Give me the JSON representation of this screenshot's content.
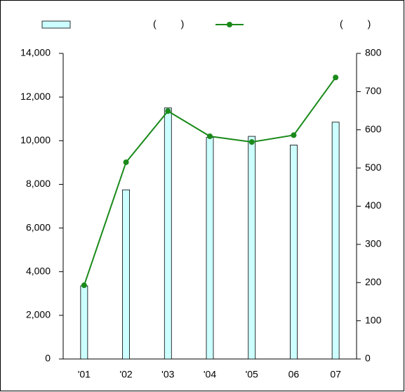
{
  "chart_data": {
    "type": "bar-line",
    "categories": [
      "'01",
      "'02",
      "'03",
      "'04",
      "'05",
      "06",
      "07"
    ],
    "series": [
      {
        "name": "(         )",
        "color": "#ccffff",
        "values": [
          3350,
          7750,
          11500,
          10150,
          10200,
          9800,
          10850
        ]
      },
      {
        "name": "(         )",
        "color": "#1a8a1a",
        "axis": "y2",
        "values": [
          193,
          515,
          649,
          583,
          568,
          586,
          737
        ]
      }
    ],
    "ylim": [
      0,
      14000
    ],
    "yticks": [
      0,
      {
        "value": 2000,
        "label": "2,000"
      },
      {
        "value": 4000,
        "label": "4,000"
      },
      {
        "value": 6000,
        "label": "6,000"
      },
      {
        "value": 8000,
        "label": "8,000"
      },
      {
        "value": 10000,
        "label": "10,000"
      },
      {
        "value": 12000,
        "label": "12,000"
      },
      {
        "value": 14000,
        "label": "14,000"
      }
    ],
    "y2lim": [
      0,
      800
    ],
    "y2ticks": [
      0,
      100,
      200,
      300,
      400,
      500,
      600,
      700,
      800
    ]
  }
}
